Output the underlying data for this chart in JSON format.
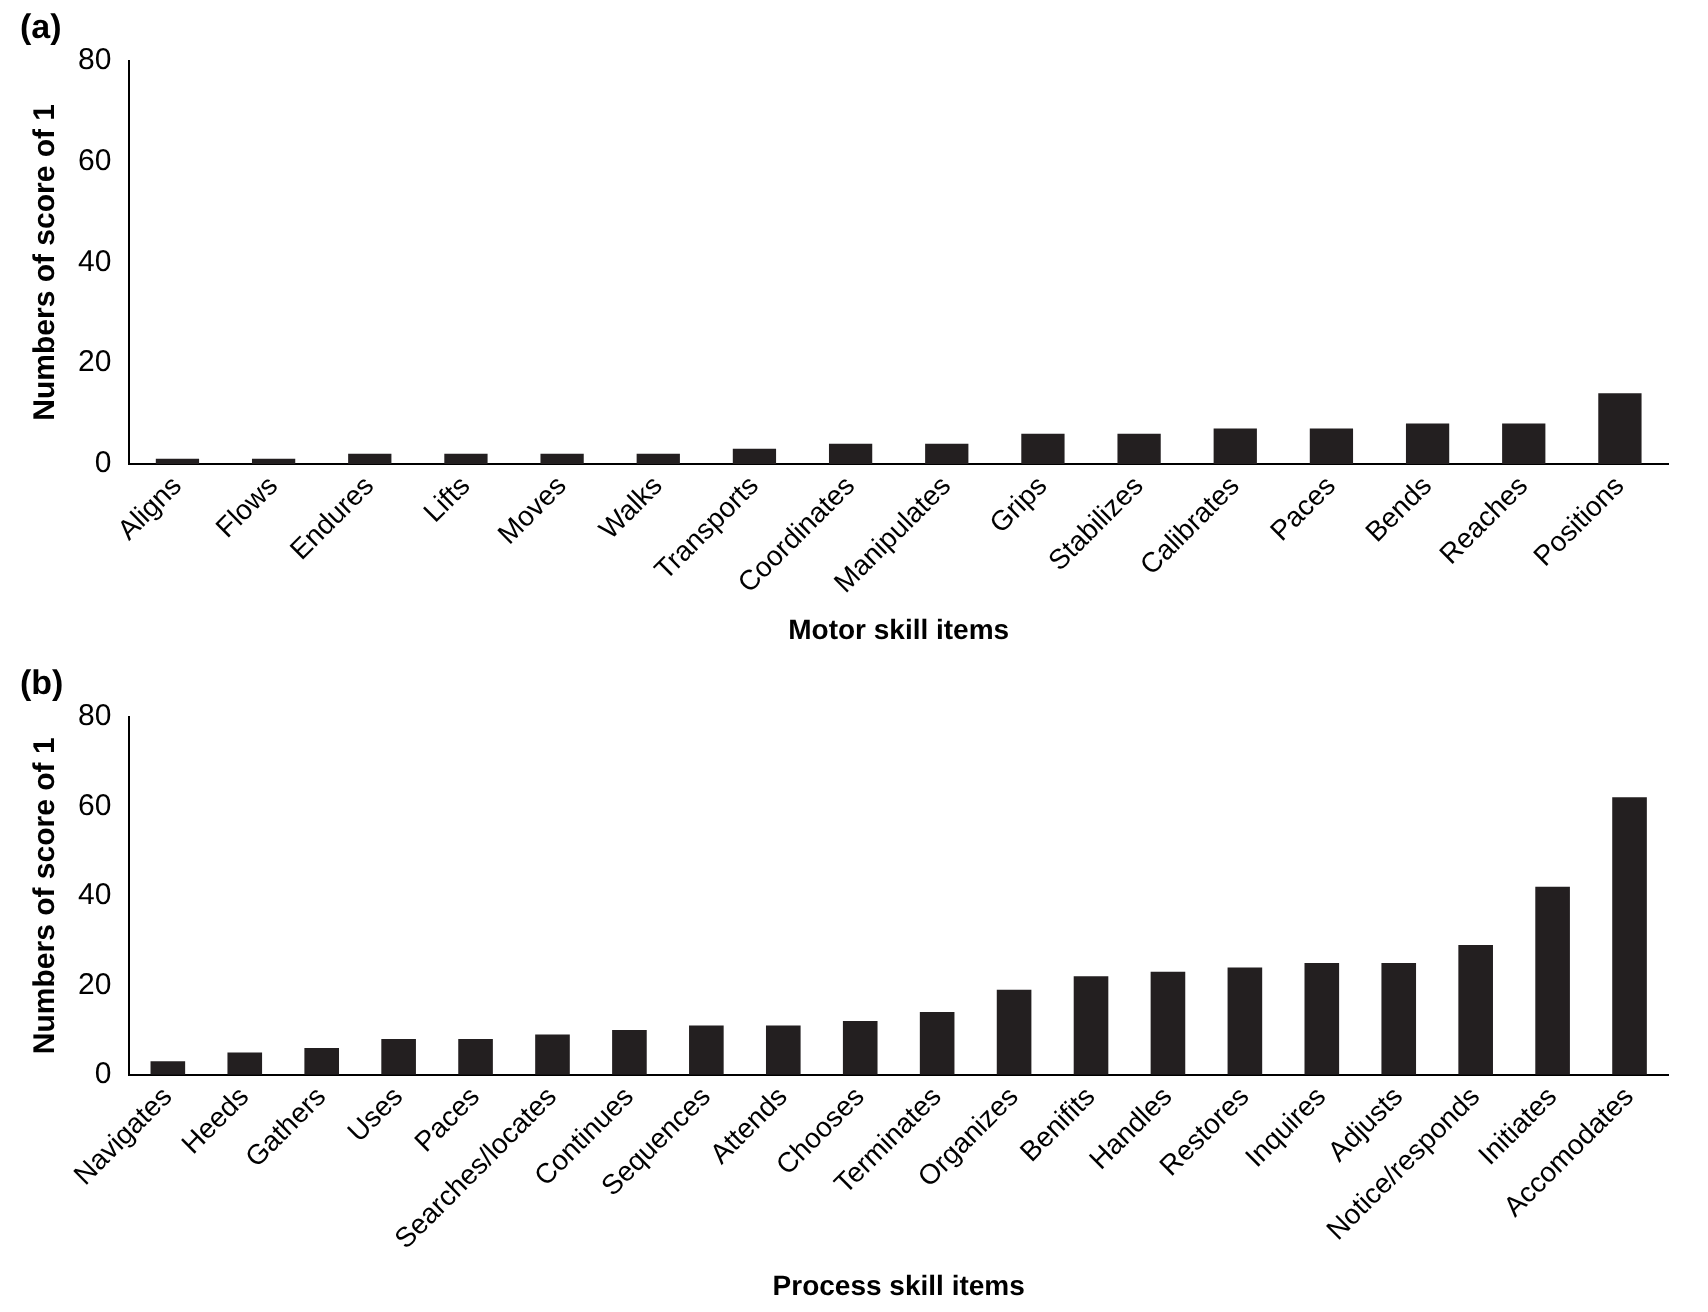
{
  "chart_data": [
    {
      "type": "bar",
      "title": "(a)",
      "xlabel": "Motor skill items",
      "ylabel": "Numbers of score of 1",
      "categories": [
        "Aligns",
        "Flows",
        "Endures",
        "Lifts",
        "Moves",
        "Walks",
        "Transports",
        "Coordinates",
        "Manipulates",
        "Grips",
        "Stabilizes",
        "Calibrates",
        "Paces",
        "Bends",
        "Reaches",
        "Positions"
      ],
      "values": [
        1,
        1,
        2,
        2,
        2,
        2,
        3,
        4,
        4,
        6,
        6,
        7,
        7,
        8,
        8,
        14
      ],
      "color": "#231f20",
      "ylim": [
        0,
        80
      ],
      "yticks": [
        0,
        20,
        40,
        60,
        80
      ],
      "grid": false,
      "legend": false
    },
    {
      "type": "bar",
      "title": "(b)",
      "xlabel": "Process skill items",
      "ylabel": "Numbers of score of 1",
      "categories": [
        "Navigates",
        "Heeds",
        "Gathers",
        "Uses",
        "Paces",
        "Searches/locates",
        "Continues",
        "Sequences",
        "Attends",
        "Chooses",
        "Terminates",
        "Organizes",
        "Benifits",
        "Handles",
        "Restores",
        "Inquires",
        "Adjusts",
        "Notice/responds",
        "Initiates",
        "Accomodates"
      ],
      "values": [
        3,
        5,
        6,
        8,
        8,
        9,
        10,
        11,
        11,
        12,
        14,
        19,
        22,
        23,
        24,
        25,
        25,
        29,
        42,
        62
      ],
      "color": "#231f20",
      "ylim": [
        0,
        80
      ],
      "yticks": [
        0,
        20,
        40,
        60,
        80
      ],
      "grid": false,
      "legend": false
    }
  ]
}
